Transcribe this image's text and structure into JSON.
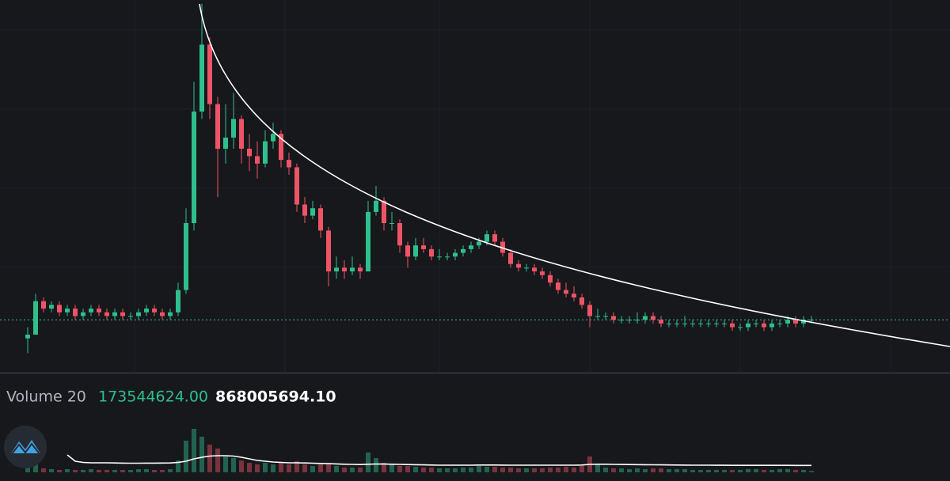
{
  "chart_data": {
    "type": "candlestick",
    "up_color": "#2fbf8c",
    "down_color": "#ef5466",
    "ylim": [
      0,
      100
    ],
    "ohlc": [
      [
        9,
        12,
        5,
        10
      ],
      [
        10,
        21,
        10,
        19
      ],
      [
        19,
        20,
        16,
        17
      ],
      [
        17,
        19,
        16,
        18
      ],
      [
        18,
        19,
        15,
        16
      ],
      [
        16,
        18,
        15,
        17
      ],
      [
        17,
        18,
        14,
        15
      ],
      [
        15,
        17,
        14,
        16
      ],
      [
        16,
        18,
        15,
        17
      ],
      [
        17,
        18,
        15,
        16
      ],
      [
        16,
        17,
        14,
        15
      ],
      [
        15,
        17,
        14,
        16
      ],
      [
        16,
        17,
        14,
        15
      ],
      [
        15,
        16,
        14,
        15
      ],
      [
        15,
        17,
        14,
        16
      ],
      [
        16,
        18,
        15,
        17
      ],
      [
        17,
        18,
        15,
        16
      ],
      [
        16,
        17,
        14,
        15
      ],
      [
        15,
        17,
        14,
        16
      ],
      [
        16,
        24,
        15,
        22
      ],
      [
        22,
        44,
        21,
        40
      ],
      [
        40,
        78,
        38,
        70
      ],
      [
        70,
        99,
        68,
        88
      ],
      [
        88,
        90,
        68,
        72
      ],
      [
        72,
        74,
        47,
        60
      ],
      [
        60,
        72,
        56,
        63
      ],
      [
        63,
        75,
        60,
        68
      ],
      [
        68,
        69,
        56,
        60
      ],
      [
        60,
        64,
        54,
        58
      ],
      [
        58,
        62,
        52,
        56
      ],
      [
        56,
        65,
        55,
        62
      ],
      [
        62,
        67,
        60,
        64
      ],
      [
        64,
        65,
        55,
        57
      ],
      [
        57,
        59,
        53,
        55
      ],
      [
        55,
        56,
        43,
        45
      ],
      [
        45,
        47,
        40,
        42
      ],
      [
        42,
        46,
        41,
        44
      ],
      [
        44,
        45,
        36,
        38
      ],
      [
        38,
        39,
        23,
        27
      ],
      [
        27,
        31,
        25,
        28
      ],
      [
        28,
        30,
        25,
        27
      ],
      [
        27,
        31,
        26,
        28
      ],
      [
        28,
        29,
        25,
        27
      ],
      [
        27,
        46,
        27,
        43
      ],
      [
        43,
        50,
        42,
        46
      ],
      [
        46,
        47,
        38,
        40
      ],
      [
        40,
        43,
        38,
        40
      ],
      [
        40,
        41,
        32,
        34
      ],
      [
        34,
        35,
        28,
        31
      ],
      [
        31,
        36,
        30,
        34
      ],
      [
        34,
        36,
        32,
        33
      ],
      [
        33,
        34,
        30,
        31
      ],
      [
        31,
        33,
        30,
        31
      ],
      [
        31,
        32,
        30,
        31
      ],
      [
        31,
        33,
        30,
        32
      ],
      [
        32,
        34,
        31,
        33
      ],
      [
        33,
        35,
        32,
        34
      ],
      [
        34,
        36,
        33,
        35
      ],
      [
        35,
        38,
        34,
        37
      ],
      [
        37,
        38,
        34,
        35
      ],
      [
        35,
        36,
        31,
        32
      ],
      [
        32,
        33,
        28,
        29
      ],
      [
        29,
        30,
        27,
        28
      ],
      [
        28,
        29,
        27,
        28
      ],
      [
        28,
        29,
        26,
        27
      ],
      [
        27,
        28,
        25,
        26
      ],
      [
        26,
        27,
        23,
        24
      ],
      [
        24,
        25,
        21,
        22
      ],
      [
        22,
        24,
        20,
        21
      ],
      [
        21,
        23,
        19,
        20
      ],
      [
        20,
        21,
        17,
        18
      ],
      [
        18,
        19,
        12,
        15
      ],
      [
        15,
        17,
        14,
        15
      ],
      [
        15,
        16,
        14,
        15
      ],
      [
        15,
        16,
        13,
        14
      ],
      [
        14,
        15,
        13,
        14
      ],
      [
        14,
        15,
        13,
        14
      ],
      [
        14,
        16,
        13,
        14
      ],
      [
        14,
        16,
        13,
        15
      ],
      [
        15,
        16,
        13,
        14
      ],
      [
        14,
        15,
        12,
        13
      ],
      [
        13,
        14,
        12,
        13
      ],
      [
        13,
        14,
        12,
        13
      ],
      [
        13,
        15,
        12,
        13
      ],
      [
        13,
        14,
        12,
        13
      ],
      [
        13,
        14,
        12,
        13
      ],
      [
        13,
        14,
        12,
        13
      ],
      [
        13,
        14,
        12,
        13
      ],
      [
        13,
        14,
        12,
        13
      ],
      [
        13,
        14,
        11,
        12
      ],
      [
        12,
        13,
        11,
        12
      ],
      [
        12,
        14,
        11,
        13
      ],
      [
        13,
        14,
        12,
        13
      ],
      [
        13,
        14,
        11,
        12
      ],
      [
        12,
        14,
        11,
        13
      ],
      [
        13,
        14,
        12,
        13
      ],
      [
        13,
        15,
        12,
        14
      ],
      [
        14,
        15,
        12,
        13
      ],
      [
        13,
        15,
        12,
        14
      ],
      [
        14,
        15,
        13,
        14
      ]
    ],
    "volume": {
      "title": "Volume 20",
      "last": "173544624.00",
      "ma_last": "868005694.10",
      "ylim": [
        0,
        12000000000
      ],
      "values": [
        600000000.0,
        1000000000.0,
        500000000.0,
        400000000.0,
        300000000.0,
        400000000.0,
        300000000.0,
        300000000.0,
        400000000.0,
        300000000.0,
        300000000.0,
        300000000.0,
        300000000.0,
        300000000.0,
        400000000.0,
        400000000.0,
        300000000.0,
        300000000.0,
        400000000.0,
        1500000000.0,
        4000000000.0,
        5500000000.0,
        4500000000.0,
        3500000000.0,
        3000000000.0,
        2000000000.0,
        1800000000.0,
        1500000000.0,
        1200000000.0,
        1000000000.0,
        1200000000.0,
        1000000000.0,
        1200000000.0,
        1000000000.0,
        1400000000.0,
        1000000000.0,
        800000000.0,
        1000000000.0,
        1200000000.0,
        800000000.0,
        600000000.0,
        600000000.0,
        600000000.0,
        2500000000.0,
        1800000000.0,
        1200000000.0,
        1000000000.0,
        800000000.0,
        800000000.0,
        700000000.0,
        600000000.0,
        600000000.0,
        500000000.0,
        500000000.0,
        500000000.0,
        600000000.0,
        600000000.0,
        800000000.0,
        700000000.0,
        700000000.0,
        600000000.0,
        600000000.0,
        500000000.0,
        500000000.0,
        500000000.0,
        500000000.0,
        600000000.0,
        600000000.0,
        700000000.0,
        600000000.0,
        800000000.0,
        2000000000.0,
        1000000000.0,
        600000000.0,
        500000000.0,
        500000000.0,
        400000000.0,
        500000000.0,
        400000000.0,
        500000000.0,
        500000000.0,
        400000000.0,
        400000000.0,
        400000000.0,
        300000000.0,
        300000000.0,
        300000000.0,
        300000000.0,
        300000000.0,
        300000000.0,
        300000000.0,
        400000000.0,
        400000000.0,
        300000000.0,
        300000000.0,
        400000000.0,
        400000000.0,
        300000000.0,
        300000000.0,
        173544624
      ],
      "ma": [
        null,
        null,
        null,
        null,
        null,
        2200000000.0,
        1400000000.0,
        1250000000.0,
        1200000000.0,
        1200000000.0,
        1200000000.0,
        1180000000.0,
        1160000000.0,
        1150000000.0,
        1150000000.0,
        1160000000.0,
        1160000000.0,
        1170000000.0,
        1180000000.0,
        1250000000.0,
        1400000000.0,
        1700000000.0,
        1900000000.0,
        2050000000.0,
        2100000000.0,
        2100000000.0,
        2050000000.0,
        1900000000.0,
        1700000000.0,
        1500000000.0,
        1400000000.0,
        1300000000.0,
        1250000000.0,
        1200000000.0,
        1200000000.0,
        1180000000.0,
        1150000000.0,
        1120000000.0,
        1100000000.0,
        1060000000.0,
        1020000000.0,
        1000000000.0,
        980000000.0,
        1020000000.0,
        1050000000.0,
        1040000000.0,
        1020000000.0,
        1000000000.0,
        980000000.0,
        960000000.0,
        940000000.0,
        920000000.0,
        900000000.0,
        900000000.0,
        900000000.0,
        900000000.0,
        900000000.0,
        920000000.0,
        920000000.0,
        920000000.0,
        910000000.0,
        900000000.0,
        900000000.0,
        900000000.0,
        900000000.0,
        900000000.0,
        900000000.0,
        900000000.0,
        900000000.0,
        900000000.0,
        920000000.0,
        1000000000.0,
        1020000000.0,
        1020000000.0,
        1000000000.0,
        990000000.0,
        980000000.0,
        970000000.0,
        960000000.0,
        950000000.0,
        940000000.0,
        930000000.0,
        920000000.0,
        910000000.0,
        900000000.0,
        900000000.0,
        900000000.0,
        890000000.0,
        890000000.0,
        880000000.0,
        880000000.0,
        880000000.0,
        880000000.0,
        880000000.0,
        880000000.0,
        880000000.0,
        880000000.0,
        870000000.0,
        870000000.0,
        868005694.1
      ]
    }
  }
}
